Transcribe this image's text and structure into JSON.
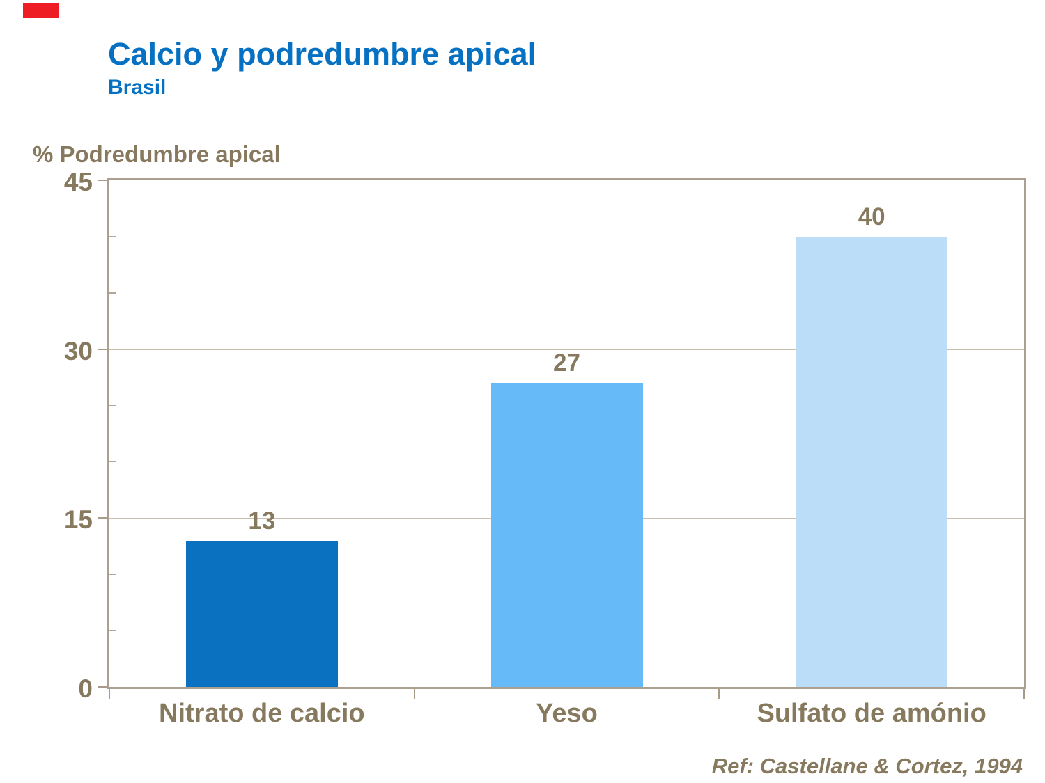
{
  "header": {
    "title": "Calcio y podredumbre apical",
    "subtitle": "Brasil"
  },
  "footer": {
    "reference": "Ref: Castellane & Cortez, 1994"
  },
  "chart_data": {
    "type": "bar",
    "title": "Calcio y podredumbre apical",
    "subtitle": "Brasil",
    "ylabel": "% Podredumbre apical",
    "xlabel": "",
    "categories": [
      "Nitrato de calcio",
      "Yeso",
      "Sulfato de amónio"
    ],
    "values": [
      13,
      27,
      40
    ],
    "data_labels": [
      "13",
      "27",
      "40"
    ],
    "bar_colors": [
      "#0A70C0",
      "#65BAF7",
      "#BCDDF8"
    ],
    "ylim": [
      0,
      45
    ],
    "y_major_ticks": [
      0,
      15,
      30,
      45
    ],
    "y_minor_ticks": [
      5,
      10,
      20,
      25,
      35,
      40
    ],
    "grid": "horizontal-major",
    "legend": "none",
    "reference": "Ref: Castellane & Cortez, 1994"
  },
  "colors": {
    "title_blue": "#0671C2",
    "text_brown": "#87795E",
    "frame_tan": "#AC9F90",
    "gridline_tan": "#C9BDAE",
    "corner_mark_red": "#EE1C23",
    "bar_dark_blue": "#0A70C0",
    "bar_medium_blue": "#65BAF7",
    "bar_light_blue": "#BCDDF8"
  }
}
